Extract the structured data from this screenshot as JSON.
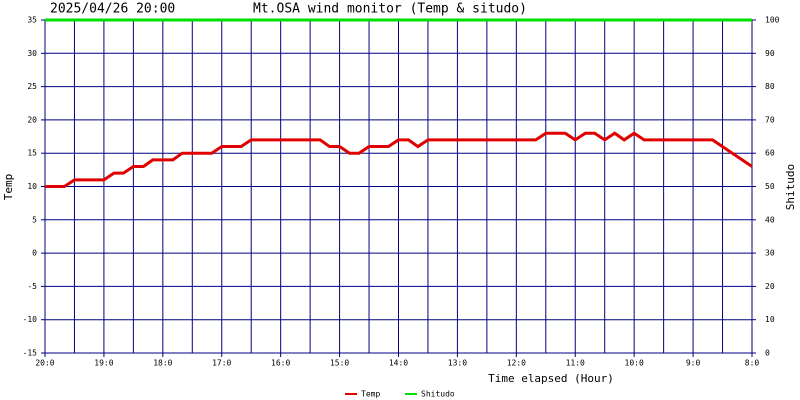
{
  "chart_data": {
    "type": "line",
    "title": "Mt.OSA wind monitor (Temp & situdo)",
    "timestamp": "2025/04/26 20:00",
    "x_label": "Time elapsed (Hour)",
    "y_label": "Temp",
    "y2_label": "Shitudo",
    "x": [
      0,
      0.33,
      0.5,
      1.0,
      1.17,
      1.33,
      1.5,
      1.67,
      1.83,
      2.17,
      2.33,
      2.83,
      3.0,
      3.33,
      3.5,
      4.67,
      4.83,
      5.0,
      5.17,
      5.33,
      5.5,
      5.83,
      6.0,
      6.17,
      6.33,
      6.5,
      8.33,
      8.5,
      8.83,
      9.0,
      9.17,
      9.33,
      9.5,
      9.67,
      9.83,
      10.0,
      10.17,
      11.33,
      12.0
    ],
    "series": [
      {
        "name": "Temp",
        "color": "#e00000",
        "axis": "y",
        "values": [
          10,
          10,
          11,
          11,
          12,
          12,
          13,
          13,
          14,
          14,
          15,
          15,
          16,
          16,
          17,
          17,
          16,
          16,
          15,
          15,
          16,
          16,
          17,
          17,
          16,
          17,
          17,
          18,
          18,
          17,
          18,
          18,
          17,
          18,
          17,
          18,
          17,
          17,
          13
        ]
      },
      {
        "name": "Shitudo",
        "color": "#00e000",
        "axis": "y2",
        "values": [
          100,
          100,
          100,
          100,
          100,
          100,
          100,
          100,
          100,
          100,
          100,
          100,
          100,
          100,
          100,
          100,
          100,
          100,
          100,
          100,
          100,
          100,
          100,
          100,
          100,
          100,
          100,
          100,
          100,
          100,
          100,
          100,
          100,
          100,
          100,
          100,
          100,
          100,
          100
        ]
      }
    ],
    "xlim": [
      0,
      12
    ],
    "xticks": [
      {
        "value": 0,
        "label": "20:0"
      },
      {
        "value": 1,
        "label": "19:0"
      },
      {
        "value": 2,
        "label": "18:0"
      },
      {
        "value": 3,
        "label": "17:0"
      },
      {
        "value": 4,
        "label": "16:0"
      },
      {
        "value": 5,
        "label": "15:0"
      },
      {
        "value": 6,
        "label": "14:0"
      },
      {
        "value": 7,
        "label": "13:0"
      },
      {
        "value": 8,
        "label": "12:0"
      },
      {
        "value": 9,
        "label": "11:0"
      },
      {
        "value": 10,
        "label": "10:0"
      },
      {
        "value": 11,
        "label": "9:0"
      },
      {
        "value": 12,
        "label": "8:0"
      }
    ],
    "xgrid": [
      0,
      0.5,
      1,
      1.5,
      2,
      2.5,
      3,
      3.5,
      4,
      4.5,
      5,
      5.5,
      6,
      6.5,
      7,
      7.5,
      8,
      8.5,
      9,
      9.5,
      10,
      10.5,
      11,
      11.5,
      12
    ],
    "ylim": [
      -15,
      35
    ],
    "yticks": [
      -15,
      -10,
      -5,
      0,
      5,
      10,
      15,
      20,
      25,
      30,
      35
    ],
    "y2lim": [
      0,
      100
    ],
    "y2ticks": [
      0,
      10,
      20,
      30,
      40,
      50,
      60,
      70,
      80,
      90,
      100
    ],
    "grid": true,
    "grid_color": "#000080"
  }
}
